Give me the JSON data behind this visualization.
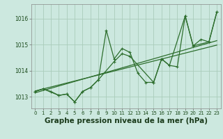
{
  "background_color": "#cce8df",
  "grid_color": "#aaccbb",
  "line_color": "#2d6e2d",
  "marker_color": "#2d6e2d",
  "xlabel": "Graphe pression niveau de la mer (hPa)",
  "xlabel_fontsize": 7.5,
  "xlim": [
    -0.5,
    23.5
  ],
  "ylim": [
    1012.55,
    1016.55
  ],
  "yticks": [
    1013,
    1014,
    1015,
    1016
  ],
  "xticks": [
    0,
    1,
    2,
    3,
    4,
    5,
    6,
    7,
    8,
    9,
    10,
    11,
    12,
    13,
    14,
    15,
    16,
    17,
    18,
    19,
    20,
    21,
    22,
    23
  ],
  "series1_x": [
    0,
    1,
    2,
    3,
    4,
    5,
    6,
    7,
    8,
    9,
    10,
    11,
    12,
    13,
    14,
    15,
    16,
    17,
    18,
    19,
    20,
    21,
    22,
    23
  ],
  "series1_y": [
    1013.2,
    1013.3,
    1013.2,
    1013.05,
    1013.1,
    1012.8,
    1013.2,
    1013.35,
    1013.65,
    1015.55,
    1014.45,
    1014.85,
    1014.7,
    1013.9,
    1013.55,
    1013.55,
    1014.45,
    1014.2,
    1014.15,
    1016.1,
    1014.95,
    1015.2,
    1015.1,
    1016.25
  ],
  "series2_x": [
    0,
    1,
    3,
    4,
    5,
    6,
    7,
    8,
    10,
    11,
    12,
    15,
    16,
    17,
    19,
    20,
    22,
    23
  ],
  "series2_y": [
    1013.2,
    1013.3,
    1013.05,
    1013.1,
    1012.8,
    1013.2,
    1013.35,
    1013.65,
    1014.35,
    1014.65,
    1014.55,
    1013.55,
    1014.45,
    1014.2,
    1016.1,
    1014.95,
    1015.1,
    1016.25
  ],
  "trend1_x": [
    0,
    23
  ],
  "trend1_y": [
    1013.15,
    1015.15
  ],
  "trend2_x": [
    0,
    23
  ],
  "trend2_y": [
    1013.22,
    1014.98
  ]
}
